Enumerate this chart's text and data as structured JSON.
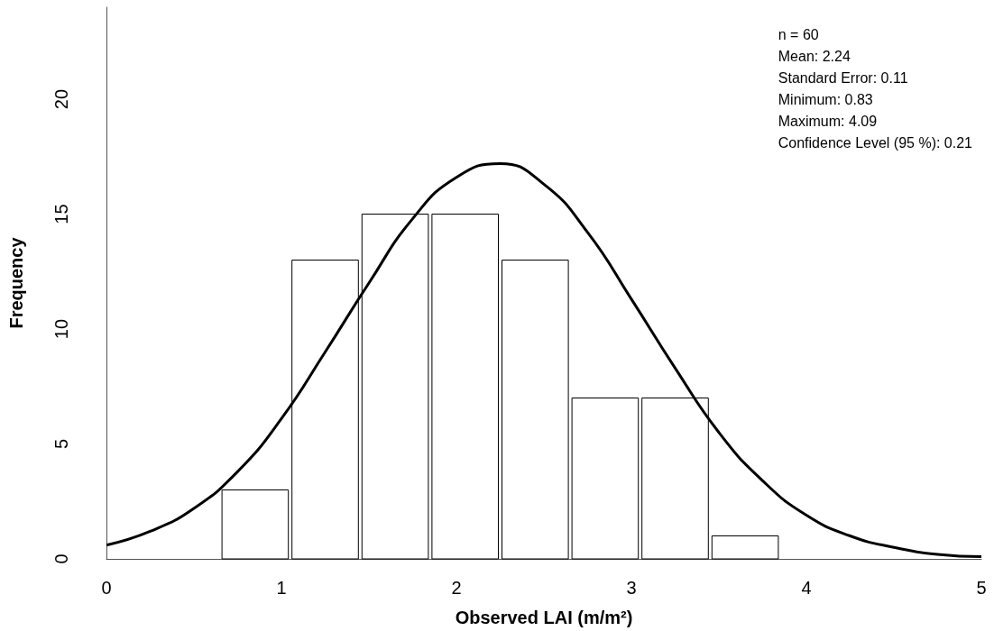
{
  "chart_data": {
    "type": "histogram",
    "xlabel": "Observed LAI (m/m²)",
    "ylabel": "Frequency",
    "bins": [
      0.65,
      1.05,
      1.45,
      1.85,
      2.25,
      2.65,
      3.05,
      3.45,
      3.85
    ],
    "values": [
      3,
      13,
      15,
      15,
      13,
      7,
      7,
      1
    ],
    "color": "#ffffff",
    "series": [
      {
        "type": "line",
        "color": "#000000",
        "x": [
          0,
          0.25,
          0.5,
          0.75,
          1,
          1.25,
          1.5,
          1.75,
          2,
          2.25,
          2.5,
          2.75,
          3,
          3.25,
          3.5,
          3.75,
          4,
          4.25,
          4.5,
          4.75,
          5
        ],
        "values": [
          0.6,
          1.2,
          2.2,
          3.8,
          6.1,
          9,
          12,
          14.8,
          16.6,
          17.2,
          16.3,
          14.2,
          11.3,
          8.3,
          5.5,
          3.4,
          1.9,
          1,
          0.5,
          0.2,
          0.1
        ]
      }
    ],
    "xlim": [
      0,
      5
    ],
    "xticks": [
      0,
      1,
      2,
      3,
      4,
      5
    ],
    "ylim": [
      0,
      24
    ],
    "yticks": [
      0,
      5,
      10,
      15,
      20
    ],
    "grid": false,
    "marker": "none",
    "annotations": [
      "n = 60",
      "Mean: 2.24",
      "Standard Error: 0.11",
      "Minimum: 0.83",
      "Maximum: 4.09",
      "Confidence Level (95 %): 0.21"
    ]
  }
}
